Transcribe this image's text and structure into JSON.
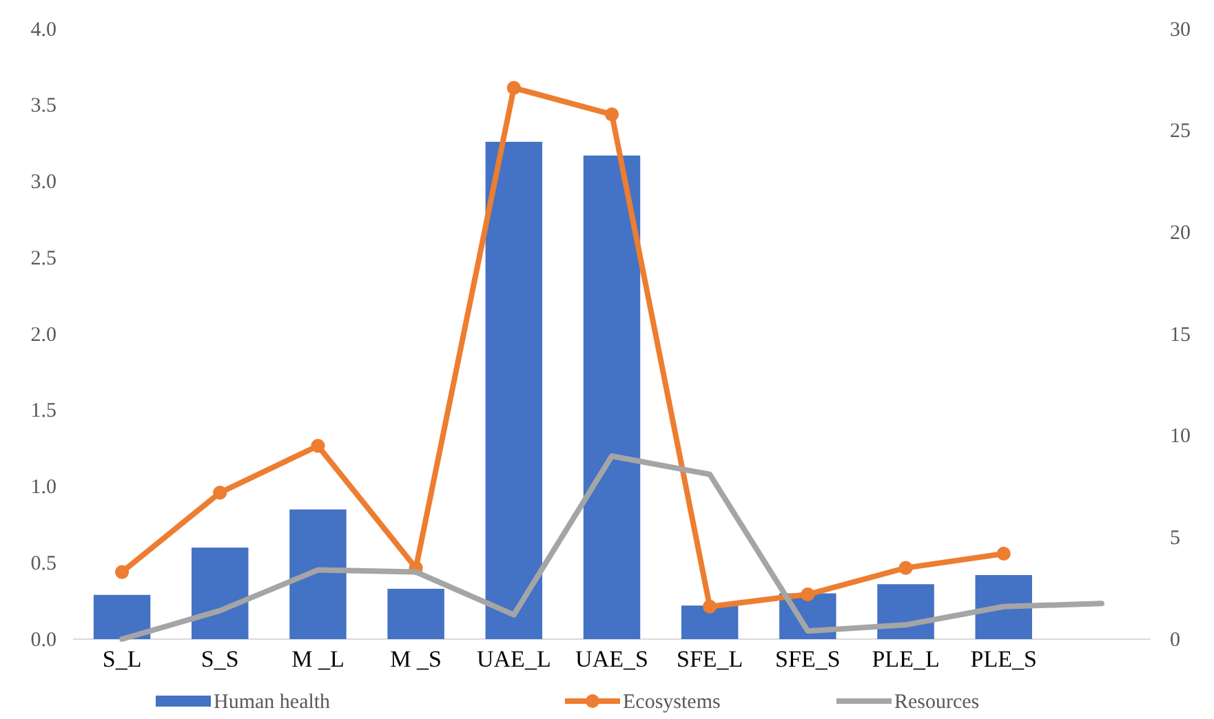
{
  "chart_data": {
    "type": "bar",
    "categories": [
      "S_L",
      "S_S",
      "M _L",
      "M _S",
      "UAE_L",
      "UAE_S",
      "SFE_L",
      "SFE_S",
      "PLE_L",
      "PLE_S",
      null
    ],
    "series": [
      {
        "name": "Human health",
        "color": "#4472c4",
        "values": [
          0.29,
          0.6,
          0.85,
          0.33,
          3.26,
          3.17,
          0.22,
          0.3,
          0.36,
          0.42,
          null
        ]
      },
      {
        "name": "Ecosystems",
        "type": "line",
        "axis": "y2",
        "color": "#ed7d31",
        "marker": "circle",
        "values": [
          3.3,
          7.2,
          9.5,
          3.5,
          27.1,
          25.8,
          1.6,
          2.2,
          3.5,
          4.2,
          null
        ]
      },
      {
        "name": "Resources",
        "type": "line",
        "axis": "y2",
        "color": "#a5a5a5",
        "marker": "none",
        "values": [
          0,
          1.4,
          3.4,
          3.3,
          1.2,
          9.0,
          8.1,
          0.4,
          0.7,
          1.6,
          1.75
        ]
      }
    ],
    "ylim": [
      0,
      4
    ],
    "yticks": [
      {
        "value": 0,
        "label": "0.0"
      },
      {
        "value": 0.5,
        "label": "0.5"
      },
      {
        "value": 1,
        "label": "1.0"
      },
      {
        "value": 1.5,
        "label": "1.5"
      },
      {
        "value": 2,
        "label": "2.0"
      },
      {
        "value": 2.5,
        "label": "2.5"
      },
      {
        "value": 3,
        "label": "3.0"
      },
      {
        "value": 3.5,
        "label": "3.5"
      },
      {
        "value": 4,
        "label": "4.0"
      }
    ],
    "y2lim": [
      0,
      30
    ],
    "y2ticks": [
      0,
      5,
      10,
      15,
      20,
      25,
      30
    ],
    "grid": false,
    "legend": "bottom"
  }
}
